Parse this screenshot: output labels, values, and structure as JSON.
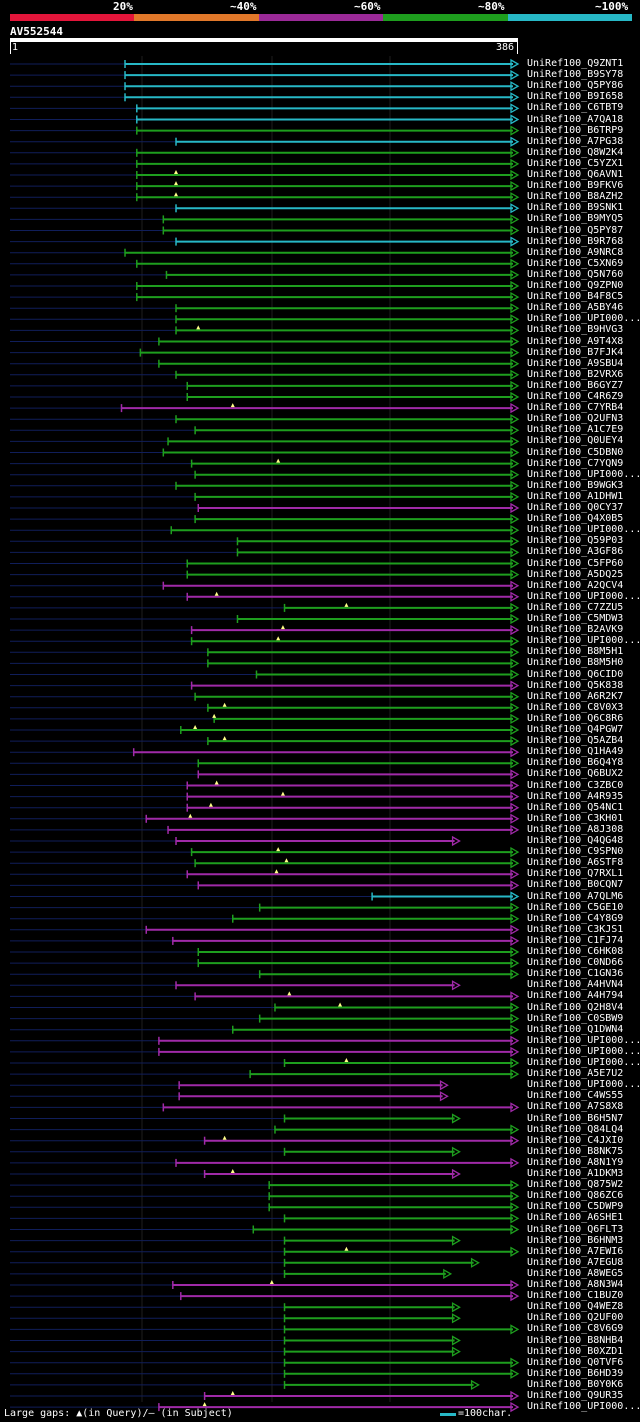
{
  "legend": {
    "percents": [
      "20%",
      "~40%",
      "~60%",
      "~80%",
      "~100%"
    ],
    "colors": [
      "#e3153a",
      "#e1782a",
      "#9b2a98",
      "#1e9e1e",
      "#27b8c6"
    ]
  },
  "query": {
    "name": "AV552544",
    "start": "1",
    "end": "386"
  },
  "footer": {
    "gaps_text": "Large gaps: ▲(in Query)/— (in Subject)",
    "scale_text": "=100char."
  },
  "colors": {
    "cyan": "#27b8c6",
    "green": "#1e9e1e",
    "purple": "#a02aa8",
    "subject_line": "#101e5a",
    "gap_marker": "#ffff88"
  },
  "hits": [
    {
      "name": "UniRef100_Q9ZNT1",
      "s": 0.2264,
      "e": 1.0,
      "c": "cyan",
      "g": []
    },
    {
      "name": "UniRef100_B9SY78",
      "s": 0.2264,
      "e": 1.0,
      "c": "cyan",
      "g": []
    },
    {
      "name": "UniRef100_Q5PY86",
      "s": 0.2264,
      "e": 1.0,
      "c": "cyan",
      "g": []
    },
    {
      "name": "UniRef100_B9I658",
      "s": 0.2264,
      "e": 1.0,
      "c": "cyan",
      "g": []
    },
    {
      "name": "UniRef100_C6TBT9",
      "s": 0.2496,
      "e": 1.0,
      "c": "cyan",
      "g": []
    },
    {
      "name": "UniRef100_A7QA18",
      "s": 0.2496,
      "e": 1.0,
      "c": "cyan",
      "g": []
    },
    {
      "name": "UniRef100_B6TRP9",
      "s": 0.2496,
      "e": 1.0,
      "c": "green",
      "g": []
    },
    {
      "name": "UniRef100_A7PG38",
      "s": 0.3268,
      "e": 1.0,
      "c": "cyan",
      "g": []
    },
    {
      "name": "UniRef100_Q8W2K4",
      "s": 0.2496,
      "e": 1.0,
      "c": "green",
      "g": []
    },
    {
      "name": "UniRef100_C5YZX1",
      "s": 0.2496,
      "e": 1.0,
      "c": "green",
      "g": []
    },
    {
      "name": "UniRef100_Q6AVN1",
      "s": 0.2496,
      "e": 1.0,
      "c": "green",
      "g": [
        0.3268
      ]
    },
    {
      "name": "UniRef100_B9FKV6",
      "s": 0.2496,
      "e": 1.0,
      "c": "green",
      "g": [
        0.3268
      ]
    },
    {
      "name": "UniRef100_B8AZH2",
      "s": 0.2496,
      "e": 1.0,
      "c": "green",
      "g": [
        0.3268
      ]
    },
    {
      "name": "UniRef100_B9SNK1",
      "s": 0.3268,
      "e": 1.0,
      "c": "cyan",
      "g": []
    },
    {
      "name": "UniRef100_B9MYQ5",
      "s": 0.3018,
      "e": 1.0,
      "c": "green",
      "g": []
    },
    {
      "name": "UniRef100_Q5PY87",
      "s": 0.3018,
      "e": 1.0,
      "c": "green",
      "g": []
    },
    {
      "name": "UniRef100_B9R768",
      "s": 0.3268,
      "e": 1.0,
      "c": "cyan",
      "g": []
    },
    {
      "name": "UniRef100_A9NRC8",
      "s": 0.2264,
      "e": 1.0,
      "c": "green",
      "g": []
    },
    {
      "name": "UniRef100_C5XN69",
      "s": 0.2496,
      "e": 1.0,
      "c": "green",
      "g": []
    },
    {
      "name": "UniRef100_Q5N760",
      "s": 0.308,
      "e": 1.0,
      "c": "green",
      "g": []
    },
    {
      "name": "UniRef100_Q9ZPN0",
      "s": 0.2496,
      "e": 1.0,
      "c": "green",
      "g": []
    },
    {
      "name": "UniRef100_B4F8C5",
      "s": 0.2496,
      "e": 1.0,
      "c": "green",
      "g": []
    },
    {
      "name": "UniRef100_A5BY46",
      "s": 0.3268,
      "e": 1.0,
      "c": "green",
      "g": []
    },
    {
      "name": "UniRef100_UPI000...",
      "s": 0.3268,
      "e": 1.0,
      "c": "green",
      "g": []
    },
    {
      "name": "UniRef100_B9HVG3",
      "s": 0.3268,
      "e": 1.0,
      "c": "green",
      "g": [
        0.3706
      ]
    },
    {
      "name": "UniRef100_A9T4X8",
      "s": 0.2931,
      "e": 1.0,
      "c": "green",
      "g": []
    },
    {
      "name": "UniRef100_B7FJK4",
      "s": 0.2566,
      "e": 1.0,
      "c": "green",
      "g": []
    },
    {
      "name": "UniRef100_A9SBU4",
      "s": 0.2931,
      "e": 1.0,
      "c": "green",
      "g": []
    },
    {
      "name": "UniRef100_B2VRX6",
      "s": 0.3268,
      "e": 1.0,
      "c": "green",
      "g": []
    },
    {
      "name": "UniRef100_B6GYZ7",
      "s": 0.3489,
      "e": 1.0,
      "c": "green",
      "g": []
    },
    {
      "name": "UniRef100_C4R6Z9",
      "s": 0.3489,
      "e": 1.0,
      "c": "green",
      "g": []
    },
    {
      "name": "UniRef100_C7YRB4",
      "s": 0.2195,
      "e": 1.0,
      "c": "purple",
      "g": [
        0.4385
      ]
    },
    {
      "name": "UniRef100_Q2UFN3",
      "s": 0.3268,
      "e": 1.0,
      "c": "green",
      "g": []
    },
    {
      "name": "UniRef100_A1C7E9",
      "s": 0.3644,
      "e": 1.0,
      "c": "green",
      "g": []
    },
    {
      "name": "UniRef100_Q0UEY4",
      "s": 0.3111,
      "e": 1.0,
      "c": "green",
      "g": []
    },
    {
      "name": "UniRef100_C5DBN0",
      "s": 0.3018,
      "e": 1.0,
      "c": "green",
      "g": []
    },
    {
      "name": "UniRef100_C7YQN9",
      "s": 0.3575,
      "e": 1.0,
      "c": "green",
      "g": [
        0.5279
      ]
    },
    {
      "name": "UniRef100_UPI000...",
      "s": 0.3644,
      "e": 1.0,
      "c": "green",
      "g": []
    },
    {
      "name": "UniRef100_B9WGK3",
      "s": 0.3268,
      "e": 1.0,
      "c": "green",
      "g": []
    },
    {
      "name": "UniRef100_A1DHW1",
      "s": 0.3644,
      "e": 1.0,
      "c": "green",
      "g": []
    },
    {
      "name": "UniRef100_Q0CY37",
      "s": 0.3706,
      "e": 1.0,
      "c": "purple",
      "g": []
    },
    {
      "name": "UniRef100_Q4X0B5",
      "s": 0.3644,
      "e": 1.0,
      "c": "green",
      "g": []
    },
    {
      "name": "UniRef100_UPI000...",
      "s": 0.3174,
      "e": 1.0,
      "c": "green",
      "g": []
    },
    {
      "name": "UniRef100_Q59P03",
      "s": 0.4478,
      "e": 1.0,
      "c": "green",
      "g": []
    },
    {
      "name": "UniRef100_A3GF86",
      "s": 0.4478,
      "e": 1.0,
      "c": "green",
      "g": []
    },
    {
      "name": "UniRef100_C5FP60",
      "s": 0.3489,
      "e": 1.0,
      "c": "green",
      "g": []
    },
    {
      "name": "UniRef100_A5DQ25",
      "s": 0.3489,
      "e": 1.0,
      "c": "green",
      "g": []
    },
    {
      "name": "UniRef100_A2QCV4",
      "s": 0.3018,
      "e": 1.0,
      "c": "purple",
      "g": []
    },
    {
      "name": "UniRef100_UPI000...",
      "s": 0.3489,
      "e": 1.0,
      "c": "purple",
      "g": [
        0.4068
      ]
    },
    {
      "name": "UniRef100_C7ZZU5",
      "s": 0.5404,
      "e": 1.0,
      "c": "green",
      "g": [
        0.6622
      ]
    },
    {
      "name": "UniRef100_C5MDW3",
      "s": 0.4478,
      "e": 1.0,
      "c": "green",
      "g": []
    },
    {
      "name": "UniRef100_B2AVK9",
      "s": 0.3575,
      "e": 1.0,
      "c": "purple",
      "g": [
        0.5373
      ]
    },
    {
      "name": "UniRef100_UPI000...",
      "s": 0.3575,
      "e": 1.0,
      "c": "green",
      "g": [
        0.5279
      ]
    },
    {
      "name": "UniRef100_B8M5H1",
      "s": 0.3895,
      "e": 1.0,
      "c": "green",
      "g": []
    },
    {
      "name": "UniRef100_B8M5H0",
      "s": 0.3895,
      "e": 1.0,
      "c": "green",
      "g": []
    },
    {
      "name": "UniRef100_Q6CID0",
      "s": 0.4852,
      "e": 1.0,
      "c": "green",
      "g": []
    },
    {
      "name": "UniRef100_Q5K838",
      "s": 0.3575,
      "e": 1.0,
      "c": "purple",
      "g": []
    },
    {
      "name": "UniRef100_A6R2K7",
      "s": 0.3644,
      "e": 1.0,
      "c": "green",
      "g": []
    },
    {
      "name": "UniRef100_C8V0X3",
      "s": 0.3895,
      "e": 1.0,
      "c": "green",
      "g": [
        0.4225
      ]
    },
    {
      "name": "UniRef100_Q6C8R6",
      "s": 0.4019,
      "e": 1.0,
      "c": "green",
      "g": [
        0.4019
      ]
    },
    {
      "name": "UniRef100_Q4PGW7",
      "s": 0.3362,
      "e": 1.0,
      "c": "green",
      "g": [
        0.3644
      ]
    },
    {
      "name": "UniRef100_Q5AZB4",
      "s": 0.3895,
      "e": 1.0,
      "c": "green",
      "g": [
        0.4225
      ]
    },
    {
      "name": "UniRef100_Q1HA49",
      "s": 0.2435,
      "e": 1.0,
      "c": "purple",
      "g": []
    },
    {
      "name": "UniRef100_B6Q4Y8",
      "s": 0.3706,
      "e": 1.0,
      "c": "green",
      "g": []
    },
    {
      "name": "UniRef100_Q6BUX2",
      "s": 0.3706,
      "e": 1.0,
      "c": "purple",
      "g": []
    },
    {
      "name": "UniRef100_C3ZBC0",
      "s": 0.3489,
      "e": 1.0,
      "c": "purple",
      "g": [
        0.4068
      ]
    },
    {
      "name": "UniRef100_A4R935",
      "s": 0.3489,
      "e": 1.0,
      "c": "purple",
      "g": [
        0.5373
      ]
    },
    {
      "name": "UniRef100_Q54NC1",
      "s": 0.3489,
      "e": 1.0,
      "c": "purple",
      "g": [
        0.3955
      ]
    },
    {
      "name": "UniRef100_C3KH01",
      "s": 0.2682,
      "e": 1.0,
      "c": "purple",
      "g": [
        0.3549
      ]
    },
    {
      "name": "UniRef100_A8J308",
      "s": 0.3111,
      "e": 1.0,
      "c": "purple",
      "g": []
    },
    {
      "name": "UniRef100_Q4QG48",
      "s": 0.3268,
      "e": 0.885,
      "c": "purple",
      "g": []
    },
    {
      "name": "UniRef100_C9SPN0",
      "s": 0.3575,
      "e": 1.0,
      "c": "green",
      "g": [
        0.5279
      ]
    },
    {
      "name": "UniRef100_A6STF8",
      "s": 0.3644,
      "e": 1.0,
      "c": "green",
      "g": [
        0.5442
      ]
    },
    {
      "name": "UniRef100_Q7RXL1",
      "s": 0.3489,
      "e": 1.0,
      "c": "purple",
      "g": [
        0.5246
      ]
    },
    {
      "name": "UniRef100_B0CQN7",
      "s": 0.3706,
      "e": 1.0,
      "c": "purple",
      "g": []
    },
    {
      "name": "UniRef100_A7QLM6",
      "s": 0.7128,
      "e": 1.0,
      "c": "cyan",
      "g": []
    },
    {
      "name": "UniRef100_C5GE10",
      "s": 0.4915,
      "e": 1.0,
      "c": "green",
      "g": []
    },
    {
      "name": "UniRef100_C4Y8G9",
      "s": 0.4385,
      "e": 1.0,
      "c": "green",
      "g": []
    },
    {
      "name": "UniRef100_C3KJS1",
      "s": 0.2682,
      "e": 1.0,
      "c": "purple",
      "g": []
    },
    {
      "name": "UniRef100_C1FJ74",
      "s": 0.3205,
      "e": 1.0,
      "c": "purple",
      "g": []
    },
    {
      "name": "UniRef100_C6HK08",
      "s": 0.3706,
      "e": 1.0,
      "c": "green",
      "g": []
    },
    {
      "name": "UniRef100_C0ND66",
      "s": 0.3706,
      "e": 1.0,
      "c": "green",
      "g": []
    },
    {
      "name": "UniRef100_C1GN36",
      "s": 0.4915,
      "e": 1.0,
      "c": "green",
      "g": []
    },
    {
      "name": "UniRef100_A4HVN4",
      "s": 0.3268,
      "e": 0.885,
      "c": "purple",
      "g": []
    },
    {
      "name": "UniRef100_A4H794",
      "s": 0.3644,
      "e": 1.0,
      "c": "purple",
      "g": [
        0.5498
      ]
    },
    {
      "name": "UniRef100_Q2H8V4",
      "s": 0.5216,
      "e": 1.0,
      "c": "green",
      "g": [
        0.6497
      ]
    },
    {
      "name": "UniRef100_C0SBW9",
      "s": 0.4915,
      "e": 1.0,
      "c": "green",
      "g": []
    },
    {
      "name": "UniRef100_Q1DWN4",
      "s": 0.4385,
      "e": 1.0,
      "c": "green",
      "g": []
    },
    {
      "name": "UniRef100_UPI000...",
      "s": 0.2931,
      "e": 1.0,
      "c": "purple",
      "g": []
    },
    {
      "name": "UniRef100_UPI000...",
      "s": 0.2931,
      "e": 1.0,
      "c": "purple",
      "g": []
    },
    {
      "name": "UniRef100_UPI000...",
      "s": 0.5404,
      "e": 1.0,
      "c": "green",
      "g": [
        0.6622
      ]
    },
    {
      "name": "UniRef100_A5E7U2",
      "s": 0.4727,
      "e": 1.0,
      "c": "green",
      "g": []
    },
    {
      "name": "UniRef100_UPI000...",
      "s": 0.333,
      "e": 0.8613,
      "c": "purple",
      "g": []
    },
    {
      "name": "UniRef100_C4WS55",
      "s": 0.333,
      "e": 0.8613,
      "c": "purple",
      "g": []
    },
    {
      "name": "UniRef100_A7S8X8",
      "s": 0.3018,
      "e": 1.0,
      "c": "purple",
      "g": []
    },
    {
      "name": "UniRef100_B6H5N7",
      "s": 0.5404,
      "e": 0.885,
      "c": "green",
      "g": []
    },
    {
      "name": "UniRef100_Q84LQ4",
      "s": 0.5216,
      "e": 1.0,
      "c": "green",
      "g": []
    },
    {
      "name": "UniRef100_C4JXI0",
      "s": 0.3831,
      "e": 1.0,
      "c": "purple",
      "g": [
        0.4225
      ]
    },
    {
      "name": "UniRef100_B8NK75",
      "s": 0.5404,
      "e": 0.885,
      "c": "green",
      "g": []
    },
    {
      "name": "UniRef100_A8N1Y9",
      "s": 0.3268,
      "e": 1.0,
      "c": "purple",
      "g": []
    },
    {
      "name": "UniRef100_A1DKM3",
      "s": 0.3831,
      "e": 0.885,
      "c": "purple",
      "g": [
        0.4385
      ]
    },
    {
      "name": "UniRef100_Q875W2",
      "s": 0.5102,
      "e": 1.0,
      "c": "green",
      "g": []
    },
    {
      "name": "UniRef100_Q86ZC6",
      "s": 0.5102,
      "e": 1.0,
      "c": "green",
      "g": []
    },
    {
      "name": "UniRef100_C5DWP9",
      "s": 0.5102,
      "e": 1.0,
      "c": "green",
      "g": []
    },
    {
      "name": "UniRef100_A6SHE1",
      "s": 0.5404,
      "e": 1.0,
      "c": "green",
      "g": []
    },
    {
      "name": "UniRef100_Q6FLT3",
      "s": 0.4789,
      "e": 1.0,
      "c": "green",
      "g": []
    },
    {
      "name": "UniRef100_B6HNM3",
      "s": 0.5404,
      "e": 0.885,
      "c": "green",
      "g": []
    },
    {
      "name": "UniRef100_A7EWI6",
      "s": 0.5404,
      "e": 1.0,
      "c": "green",
      "g": [
        0.6622
      ]
    },
    {
      "name": "UniRef100_A7EGU8",
      "s": 0.5404,
      "e": 0.9224,
      "c": "green",
      "g": []
    },
    {
      "name": "UniRef100_A8WEG5",
      "s": 0.5404,
      "e": 0.8677,
      "c": "green",
      "g": []
    },
    {
      "name": "UniRef100_A8N3W4",
      "s": 0.3205,
      "e": 1.0,
      "c": "purple",
      "g": [
        0.5154
      ]
    },
    {
      "name": "UniRef100_C1BUZ0",
      "s": 0.3362,
      "e": 1.0,
      "c": "purple",
      "g": []
    },
    {
      "name": "UniRef100_Q4WEZ8",
      "s": 0.5404,
      "e": 0.885,
      "c": "green",
      "g": []
    },
    {
      "name": "UniRef100_Q2UF00",
      "s": 0.5404,
      "e": 0.885,
      "c": "green",
      "g": []
    },
    {
      "name": "UniRef100_C8V6G9",
      "s": 0.5404,
      "e": 1.0,
      "c": "green",
      "g": []
    },
    {
      "name": "UniRef100_B8NHB4",
      "s": 0.5404,
      "e": 0.885,
      "c": "green",
      "g": []
    },
    {
      "name": "UniRef100_B0XZD1",
      "s": 0.5404,
      "e": 0.885,
      "c": "green",
      "g": []
    },
    {
      "name": "UniRef100_Q0TVF6",
      "s": 0.5404,
      "e": 1.0,
      "c": "green",
      "g": []
    },
    {
      "name": "UniRef100_B6HD39",
      "s": 0.5404,
      "e": 1.0,
      "c": "green",
      "g": []
    },
    {
      "name": "UniRef100_B0Y0K6",
      "s": 0.5404,
      "e": 0.9224,
      "c": "green",
      "g": []
    },
    {
      "name": "UniRef100_Q9UR35",
      "s": 0.3831,
      "e": 1.0,
      "c": "purple",
      "g": [
        0.4385
      ]
    },
    {
      "name": "UniRef100_UPI000...",
      "s": 0.2931,
      "e": 1.0,
      "c": "purple",
      "g": [
        0.3831
      ]
    }
  ]
}
